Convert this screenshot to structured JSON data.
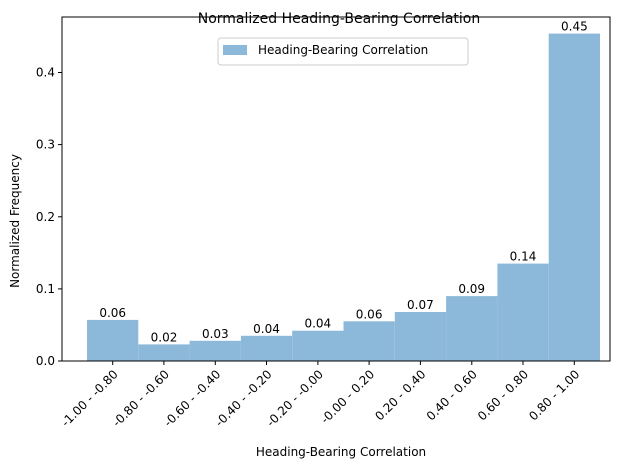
{
  "chart_data": {
    "type": "bar",
    "title": "Normalized Heading-Bearing Correlation",
    "xlabel": "Heading-Bearing Correlation",
    "ylabel": "Normalized Frequency",
    "categories": [
      "-1.00 - -0.80",
      "-0.80 - -0.60",
      "-0.60 - -0.40",
      "-0.40 - -0.20",
      "-0.20 - -0.00",
      "-0.00 - 0.20",
      "0.20 - 0.40",
      "0.40 - 0.60",
      "0.60 - 0.80",
      "0.80 - 1.00"
    ],
    "series": [
      {
        "name": "Heading-Bearing Correlation",
        "values": [
          0.057,
          0.023,
          0.028,
          0.035,
          0.042,
          0.055,
          0.068,
          0.09,
          0.135,
          0.454
        ],
        "labels": [
          "0.06",
          "0.02",
          "0.03",
          "0.04",
          "0.04",
          "0.06",
          "0.07",
          "0.09",
          "0.14",
          "0.45"
        ],
        "color": "#8cb9d9"
      }
    ],
    "ylim": [
      0,
      0.477
    ],
    "yticks": [
      "0.0",
      "0.1",
      "0.2",
      "0.3",
      "0.4"
    ],
    "ytick_values": [
      0,
      0.1,
      0.2,
      0.3,
      0.4
    ],
    "legend_position": "top-center",
    "grid": false
  }
}
